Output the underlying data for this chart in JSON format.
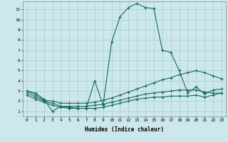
{
  "xlabel": "Humidex (Indice chaleur)",
  "bg_color": "#cce8ec",
  "grid_color": "#aacccc",
  "line_color": "#1a6b5a",
  "x_ticks": [
    0,
    1,
    2,
    3,
    4,
    5,
    6,
    7,
    8,
    9,
    10,
    11,
    12,
    13,
    14,
    15,
    16,
    17,
    18,
    19,
    20,
    21,
    22,
    23
  ],
  "y_ticks": [
    1,
    2,
    3,
    4,
    5,
    6,
    7,
    8,
    9,
    10,
    11
  ],
  "ylim": [
    0.5,
    11.8
  ],
  "xlim": [
    -0.5,
    23.5
  ],
  "series": [
    {
      "x": [
        0,
        1,
        2,
        3,
        4,
        5,
        6,
        7,
        8,
        9,
        10,
        11,
        12,
        13,
        14,
        15,
        16,
        17,
        18,
        19,
        20,
        21,
        22,
        23
      ],
      "y": [
        3.0,
        2.8,
        2.2,
        1.0,
        1.5,
        1.4,
        1.3,
        1.3,
        4.0,
        1.6,
        7.8,
        10.3,
        11.2,
        11.6,
        11.2,
        11.1,
        7.0,
        6.8,
        5.0,
        2.8,
        3.4,
        2.7,
        3.1,
        3.2
      ]
    },
    {
      "x": [
        0,
        1,
        2,
        3,
        4,
        5,
        6,
        7,
        8,
        9,
        10,
        11,
        12,
        13,
        14,
        15,
        16,
        17,
        18,
        19,
        20,
        21,
        22,
        23
      ],
      "y": [
        3.0,
        2.6,
        2.1,
        2.0,
        1.8,
        1.8,
        1.8,
        1.8,
        1.9,
        2.1,
        2.3,
        2.6,
        2.9,
        3.2,
        3.5,
        3.8,
        4.1,
        4.3,
        4.6,
        4.8,
        5.0,
        4.8,
        4.5,
        4.2
      ]
    },
    {
      "x": [
        0,
        1,
        2,
        3,
        4,
        5,
        6,
        7,
        8,
        9,
        10,
        11,
        12,
        13,
        14,
        15,
        16,
        17,
        18,
        19,
        20,
        21,
        22,
        23
      ],
      "y": [
        2.8,
        2.4,
        2.0,
        1.8,
        1.5,
        1.5,
        1.5,
        1.5,
        1.6,
        1.7,
        1.9,
        2.1,
        2.3,
        2.5,
        2.7,
        2.8,
        2.9,
        3.0,
        3.1,
        3.1,
        3.1,
        2.9,
        2.8,
        2.8
      ]
    },
    {
      "x": [
        0,
        1,
        2,
        3,
        4,
        5,
        6,
        7,
        8,
        9,
        10,
        11,
        12,
        13,
        14,
        15,
        16,
        17,
        18,
        19,
        20,
        21,
        22,
        23
      ],
      "y": [
        2.6,
        2.2,
        1.9,
        1.6,
        1.4,
        1.3,
        1.3,
        1.3,
        1.3,
        1.4,
        1.6,
        1.8,
        2.0,
        2.2,
        2.3,
        2.4,
        2.4,
        2.5,
        2.5,
        2.5,
        2.6,
        2.4,
        2.6,
        2.8
      ]
    }
  ]
}
